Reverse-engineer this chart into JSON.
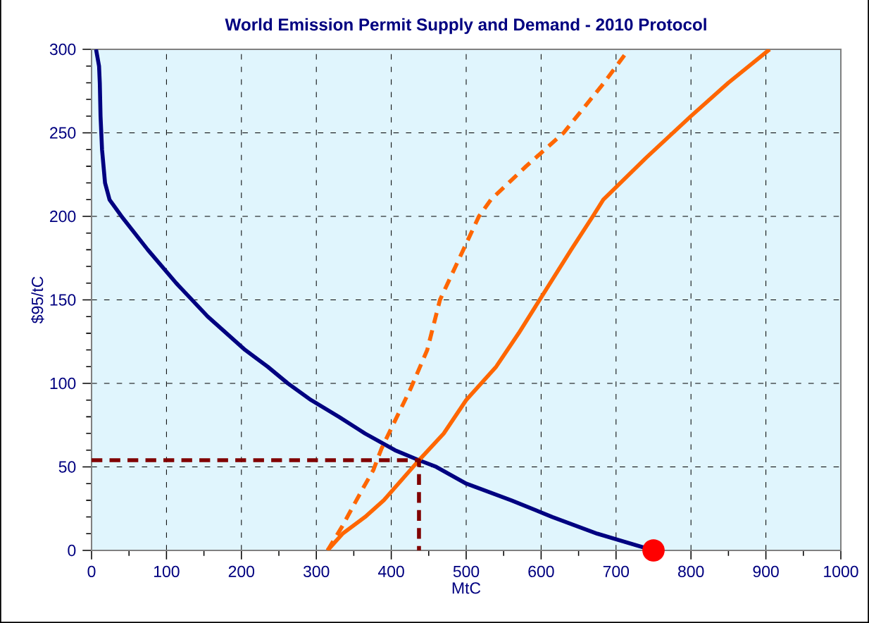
{
  "chart_data": {
    "type": "line",
    "title": "World Emission Permit Supply and Demand - 2010 Protocol",
    "xlabel": "MtC",
    "ylabel": "$95/tC",
    "xlim": [
      0,
      1000
    ],
    "ylim": [
      0,
      300
    ],
    "xticks": [
      0,
      100,
      200,
      300,
      400,
      500,
      600,
      700,
      800,
      900,
      1000
    ],
    "yticks": [
      0,
      50,
      100,
      150,
      200,
      250,
      300
    ],
    "grid": true,
    "series": [
      {
        "color": "#000080",
        "line_style": "solid",
        "x": [
          6,
          10,
          11,
          12,
          14,
          18,
          24,
          40,
          75,
          113,
          155,
          180,
          205,
          235,
          262,
          293,
          330,
          365,
          405,
          437,
          460,
          500,
          560,
          615,
          675,
          750
        ],
        "values": [
          300,
          290,
          280,
          260,
          240,
          220,
          210,
          200,
          180,
          160,
          140,
          130,
          120,
          110,
          100,
          90,
          80,
          70,
          60,
          54,
          50,
          40,
          30,
          20,
          10,
          0
        ]
      },
      {
        "color": "#ff6600",
        "line_style": "solid",
        "x": [
          315,
          335,
          365,
          390,
          437,
          470,
          500,
          540,
          570,
          598,
          640,
          669,
          683,
          740,
          800,
          850,
          905
        ],
        "values": [
          0,
          10,
          20,
          30,
          54,
          70,
          90,
          110,
          130,
          150,
          180,
          200,
          210,
          235,
          260,
          280,
          300
        ]
      },
      {
        "color": "#ff6600",
        "line_style": "dashed",
        "x": [
          315,
          334,
          362,
          376,
          387,
          426,
          448,
          465,
          517,
          533,
          580,
          630,
          684,
          717
        ],
        "values": [
          0,
          14,
          37,
          48,
          61,
          97,
          120,
          150,
          200,
          210,
          230,
          250,
          280,
          300
        ]
      },
      {
        "color": "#800000",
        "line_style": "dashed",
        "x": [
          0,
          437,
          437
        ],
        "values": [
          54,
          54,
          0
        ]
      },
      {
        "color": "#ff0000",
        "type": "scatter",
        "marker": "circle",
        "x": [
          750
        ],
        "values": [
          0
        ]
      }
    ]
  }
}
